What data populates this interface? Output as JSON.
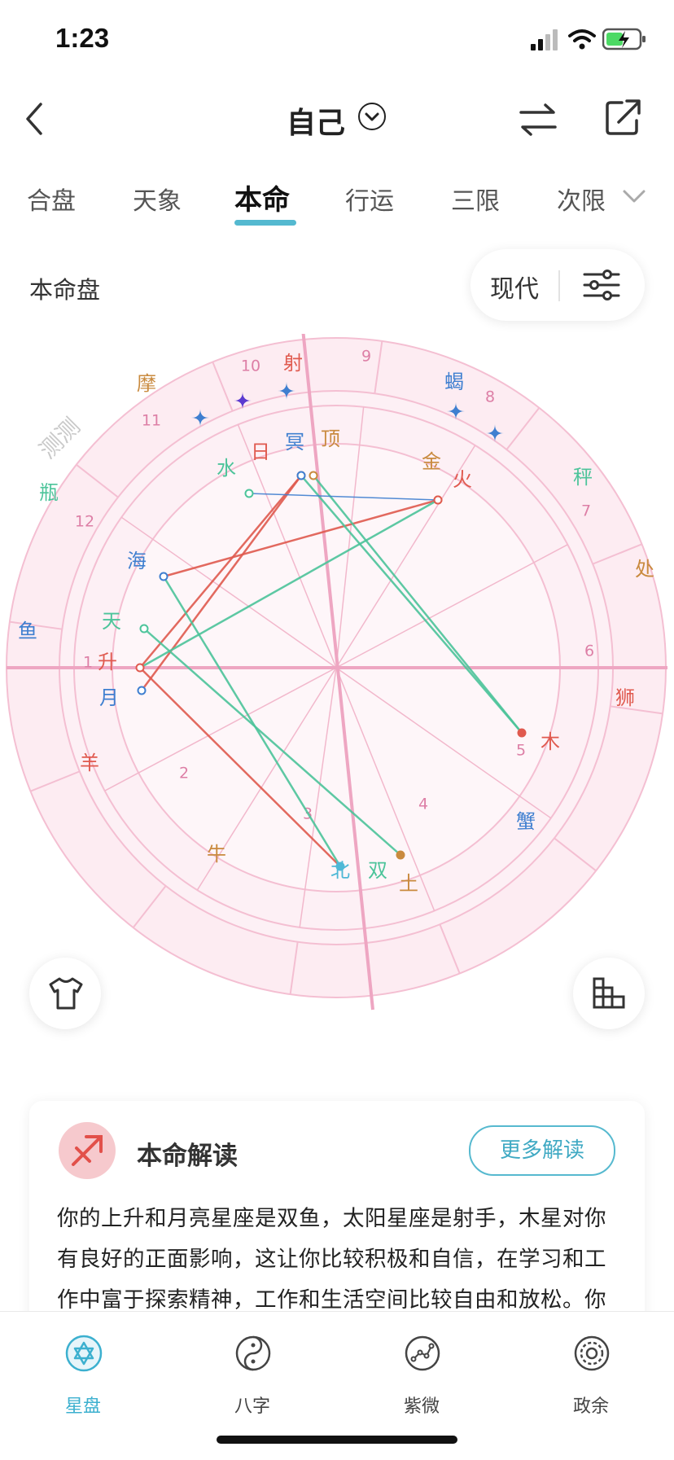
{
  "status_bar": {
    "time": "1:23"
  },
  "header": {
    "title": "自己"
  },
  "tabs": [
    {
      "label": "合盘"
    },
    {
      "label": "天象"
    },
    {
      "label": "本命",
      "active": true
    },
    {
      "label": "行运"
    },
    {
      "label": "三限"
    },
    {
      "label": "次限"
    }
  ],
  "section": {
    "title": "本命盘",
    "style_label": "现代"
  },
  "chart": {
    "watermark": "测测",
    "signs": [
      "射",
      "蝎",
      "秤",
      "处",
      "狮",
      "蟹",
      "双",
      "牛",
      "羊",
      "鱼",
      "瓶",
      "摩"
    ],
    "houses": [
      "1",
      "2",
      "3",
      "4",
      "5",
      "6",
      "7",
      "8",
      "9",
      "10",
      "11",
      "12"
    ],
    "planets": [
      "日",
      "冥",
      "顶",
      "水",
      "金",
      "火",
      "海",
      "天",
      "升",
      "月",
      "木",
      "北",
      "土"
    ],
    "colors": {
      "fire": "#e05a4f",
      "water": "#3f7fd0",
      "air": "#4cc49a",
      "earth": "#c98a3e",
      "ring": "#f4bfd2",
      "fill": "#fdecf2"
    }
  },
  "card": {
    "title": "本命解读",
    "more_button": "更多解读",
    "lines": [
      "你的上升和月亮星座是双鱼，太阳星座是射手，木星对你",
      "有良好的正面影响，这让你比较积极和自信，在学习和工",
      "作中富于探索精神，工作和生活空间比较自由和放松。你"
    ]
  },
  "bottom_nav": [
    {
      "label": "星盘",
      "icon": "star-of-david-icon",
      "active": true
    },
    {
      "label": "八字",
      "icon": "yin-yang-icon"
    },
    {
      "label": "紫微",
      "icon": "constellation-icon"
    },
    {
      "label": "政余",
      "icon": "concentric-circle-icon"
    }
  ]
}
